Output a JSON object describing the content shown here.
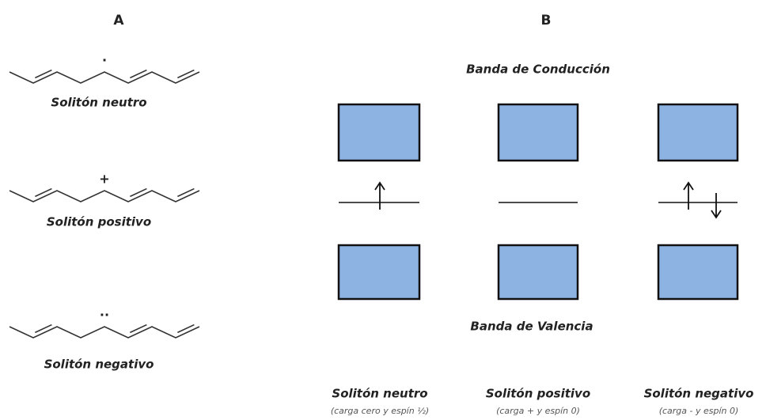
{
  "panels": {
    "a": {
      "label": "A",
      "molecules": [
        {
          "symbol": "·",
          "label": "Solitón neutro"
        },
        {
          "symbol": "+",
          "label": "Solitón positivo"
        },
        {
          "symbol": "··",
          "label": "Solitón negativo"
        }
      ]
    },
    "b": {
      "label": "B",
      "conduction_band": "Banda de Conducción",
      "valence_band": "Banda de Valencia",
      "solitons": [
        {
          "name": "Solitón neutro",
          "note": "(carga cero y espín ½)"
        },
        {
          "name": "Solitón positivo",
          "note": "(carga + y espín 0)"
        },
        {
          "name": "Solitón negativo",
          "note": "(carga - y espín 0)"
        }
      ]
    }
  }
}
